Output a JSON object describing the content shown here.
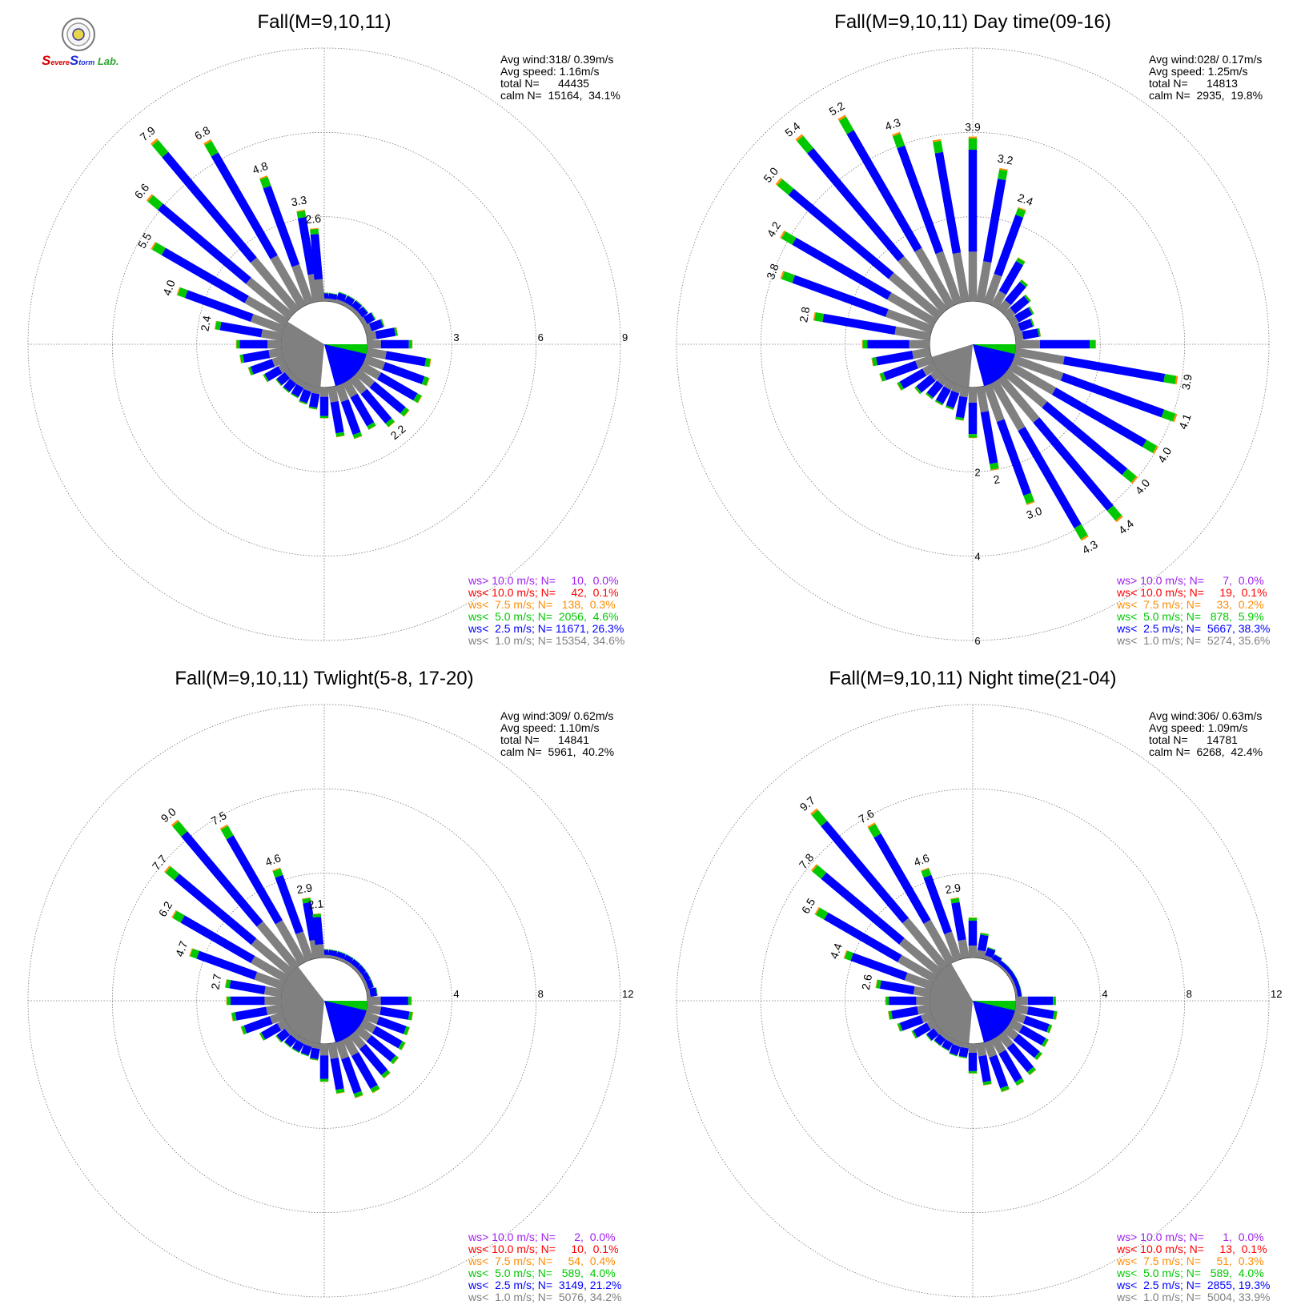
{
  "logo": {
    "text_parts": [
      {
        "text": "S",
        "color": "#d40000"
      },
      {
        "text": "evere",
        "color": "#d40000"
      },
      {
        "text": "S",
        "color": "#1f2fd8"
      },
      {
        "text": "torm",
        "color": "#1f2fd8"
      },
      {
        "text": " Lab.",
        "color": "#2fa52f"
      }
    ]
  },
  "colors": {
    "calm": "#808080",
    "ws_lt_1": "#808080",
    "ws_lt_2_5": "#0000ff",
    "ws_lt_5": "#00c800",
    "ws_lt_7_5": "#ff8c00",
    "ws_lt_10": "#ff0000",
    "ws_gt_10": "#a020f0"
  },
  "chart_data": [
    {
      "type": "wind-rose",
      "title": "Fall(M=9,10,11)",
      "radial_max": 9,
      "ring_labels": [
        "3",
        "6",
        "9"
      ],
      "stats": [
        "Avg wind:318/ 0.39m/s",
        "Avg speed: 1.16m/s",
        "total N=      44435",
        "calm N=  15164,  34.1%"
      ],
      "legend": [
        {
          "text": "ws> 10.0 m/s; N=     10,  0.0%",
          "color": "#a020f0"
        },
        {
          "text": "ws< 10.0 m/s; N=     42,  0.1%",
          "color": "#ff0000"
        },
        {
          "text": "ws<  7.5 m/s; N=   138,  0.3%",
          "color": "#ff8c00"
        },
        {
          "text": "ws<  5.0 m/s; N=  2056,  4.6%",
          "color": "#00c800"
        },
        {
          "text": "ws<  2.5 m/s; N= 11671, 26.3%",
          "color": "#0000ff"
        },
        {
          "text": "ws<  1.0 m/s; N= 15354, 34.6%",
          "color": "#808080"
        }
      ],
      "calm_pct": 34.1,
      "sectors": [
        {
          "dir": 0,
          "total": 0.3,
          "label": ""
        },
        {
          "dir": 10,
          "total": 0.3,
          "label": ""
        },
        {
          "dir": 20,
          "total": 0.4,
          "label": ""
        },
        {
          "dir": 30,
          "total": 0.4,
          "label": ""
        },
        {
          "dir": 40,
          "total": 0.4,
          "label": ""
        },
        {
          "dir": 50,
          "total": 0.4,
          "label": ""
        },
        {
          "dir": 60,
          "total": 0.5,
          "label": ""
        },
        {
          "dir": 70,
          "total": 0.7,
          "label": ""
        },
        {
          "dir": 80,
          "total": 1.1,
          "label": ""
        },
        {
          "dir": 90,
          "total": 1.6,
          "label": ""
        },
        {
          "dir": 100,
          "total": 2.3,
          "label": ""
        },
        {
          "dir": 110,
          "total": 2.4,
          "label": ""
        },
        {
          "dir": 120,
          "total": 2.4,
          "label": ""
        },
        {
          "dir": 130,
          "total": 2.3,
          "label": ""
        },
        {
          "dir": 140,
          "total": 2.2,
          "label": "2.2"
        },
        {
          "dir": 150,
          "total": 1.9,
          "label": ""
        },
        {
          "dir": 160,
          "total": 2.0,
          "label": ""
        },
        {
          "dir": 170,
          "total": 1.8,
          "label": ""
        },
        {
          "dir": 180,
          "total": 1.1,
          "label": ""
        },
        {
          "dir": 190,
          "total": 0.8,
          "label": ""
        },
        {
          "dir": 200,
          "total": 0.7,
          "label": ""
        },
        {
          "dir": 210,
          "total": 0.6,
          "label": ""
        },
        {
          "dir": 220,
          "total": 0.6,
          "label": ""
        },
        {
          "dir": 230,
          "total": 0.6,
          "label": ""
        },
        {
          "dir": 240,
          "total": 0.9,
          "label": ""
        },
        {
          "dir": 250,
          "total": 1.3,
          "label": ""
        },
        {
          "dir": 260,
          "total": 1.5,
          "label": ""
        },
        {
          "dir": 270,
          "total": 1.6,
          "label": ""
        },
        {
          "dir": 280,
          "total": 2.4,
          "label": "2.4"
        },
        {
          "dir": 290,
          "total": 4.0,
          "label": "4.0"
        },
        {
          "dir": 300,
          "total": 5.5,
          "label": "5.5"
        },
        {
          "dir": 310,
          "total": 6.6,
          "label": "6.6"
        },
        {
          "dir": 320,
          "total": 7.9,
          "label": "7.9"
        },
        {
          "dir": 330,
          "total": 6.8,
          "label": "6.8"
        },
        {
          "dir": 340,
          "total": 4.8,
          "label": "4.8"
        },
        {
          "dir": 350,
          "total": 3.3,
          "label": "3.3"
        },
        {
          "dir": 355,
          "total": 2.6,
          "label": "2.6"
        }
      ]
    },
    {
      "type": "wind-rose",
      "title": "Fall(M=9,10,11) Day time(09-16)",
      "radial_max": 6,
      "ring_labels": [
        "2",
        "4",
        "6"
      ],
      "ring_label_axis": "south",
      "stats": [
        "Avg wind:028/ 0.17m/s",
        "Avg speed: 1.25m/s",
        "total N=      14813",
        "calm N=  2935,  19.8%"
      ],
      "legend": [
        {
          "text": "ws> 10.0 m/s; N=      7,  0.0%",
          "color": "#a020f0"
        },
        {
          "text": "ws< 10.0 m/s; N=     19,  0.1%",
          "color": "#ff0000"
        },
        {
          "text": "ws<  7.5 m/s; N=     33,  0.2%",
          "color": "#ff8c00"
        },
        {
          "text": "ws<  5.0 m/s; N=   878,  5.9%",
          "color": "#00c800"
        },
        {
          "text": "ws<  2.5 m/s; N=  5667, 38.3%",
          "color": "#0000ff"
        },
        {
          "text": "ws<  1.0 m/s; N=  5274, 35.6%",
          "color": "#808080"
        }
      ],
      "calm_pct": 19.8,
      "sectors": [
        {
          "dir": 0,
          "total": 3.9,
          "label": "3.9"
        },
        {
          "dir": 10,
          "total": 3.2,
          "label": "3.2"
        },
        {
          "dir": 20,
          "total": 2.4,
          "label": "2.4"
        },
        {
          "dir": 30,
          "total": 1.3,
          "label": ""
        },
        {
          "dir": 40,
          "total": 0.9,
          "label": ""
        },
        {
          "dir": 50,
          "total": 0.7,
          "label": ""
        },
        {
          "dir": 60,
          "total": 0.6,
          "label": ""
        },
        {
          "dir": 70,
          "total": 0.5,
          "label": ""
        },
        {
          "dir": 80,
          "total": 0.6,
          "label": ""
        },
        {
          "dir": 90,
          "total": 1.9,
          "label": ""
        },
        {
          "dir": 100,
          "total": 3.9,
          "label": "3.9"
        },
        {
          "dir": 110,
          "total": 4.1,
          "label": "4.1"
        },
        {
          "dir": 120,
          "total": 4.0,
          "label": "4.0"
        },
        {
          "dir": 130,
          "total": 4.0,
          "label": "4.0"
        },
        {
          "dir": 140,
          "total": 4.4,
          "label": "4.4"
        },
        {
          "dir": 150,
          "total": 4.3,
          "label": "4.3"
        },
        {
          "dir": 160,
          "total": 3.0,
          "label": "3.0"
        },
        {
          "dir": 170,
          "total": 2.0,
          "label": "2"
        },
        {
          "dir": 180,
          "total": 1.2,
          "label": ""
        },
        {
          "dir": 190,
          "total": 0.8,
          "label": ""
        },
        {
          "dir": 200,
          "total": 0.6,
          "label": ""
        },
        {
          "dir": 210,
          "total": 0.6,
          "label": ""
        },
        {
          "dir": 220,
          "total": 0.6,
          "label": ""
        },
        {
          "dir": 230,
          "total": 0.7,
          "label": ""
        },
        {
          "dir": 240,
          "total": 1.0,
          "label": ""
        },
        {
          "dir": 250,
          "total": 1.3,
          "label": ""
        },
        {
          "dir": 260,
          "total": 1.4,
          "label": ""
        },
        {
          "dir": 270,
          "total": 1.6,
          "label": ""
        },
        {
          "dir": 280,
          "total": 2.8,
          "label": "2.8"
        },
        {
          "dir": 290,
          "total": 3.8,
          "label": "3.8"
        },
        {
          "dir": 300,
          "total": 4.2,
          "label": "4.2"
        },
        {
          "dir": 310,
          "total": 5.0,
          "label": "5.0"
        },
        {
          "dir": 320,
          "total": 5.4,
          "label": "5.4"
        },
        {
          "dir": 330,
          "total": 5.2,
          "label": "5.2"
        },
        {
          "dir": 340,
          "total": 4.3,
          "label": "4.3"
        },
        {
          "dir": 350,
          "total": 3.9,
          "label": ""
        }
      ]
    },
    {
      "type": "wind-rose",
      "title": "Fall(M=9,10,11) Twlight(5-8, 17-20)",
      "radial_max": 12,
      "ring_labels": [
        "4",
        "8",
        "12"
      ],
      "stats": [
        "Avg wind:309/ 0.62m/s",
        "Avg speed: 1.10m/s",
        "total N=      14841",
        "calm N=  5961,  40.2%"
      ],
      "legend": [
        {
          "text": "ws> 10.0 m/s; N=      2,  0.0%",
          "color": "#a020f0"
        },
        {
          "text": "ws< 10.0 m/s; N=     10,  0.1%",
          "color": "#ff0000"
        },
        {
          "text": "ws<  7.5 m/s; N=     54,  0.4%",
          "color": "#ff8c00"
        },
        {
          "text": "ws<  5.0 m/s; N=   589,  4.0%",
          "color": "#00c800"
        },
        {
          "text": "ws<  2.5 m/s; N=  3149, 21.2%",
          "color": "#0000ff"
        },
        {
          "text": "ws<  1.0 m/s; N=  5076, 34.2%",
          "color": "#808080"
        }
      ],
      "calm_pct": 40.2,
      "sectors": [
        {
          "dir": 0,
          "total": 0.4,
          "label": ""
        },
        {
          "dir": 10,
          "total": 0.4,
          "label": ""
        },
        {
          "dir": 20,
          "total": 0.4,
          "label": ""
        },
        {
          "dir": 30,
          "total": 0.4,
          "label": ""
        },
        {
          "dir": 40,
          "total": 0.4,
          "label": ""
        },
        {
          "dir": 50,
          "total": 0.4,
          "label": ""
        },
        {
          "dir": 60,
          "total": 0.4,
          "label": ""
        },
        {
          "dir": 70,
          "total": 0.4,
          "label": ""
        },
        {
          "dir": 80,
          "total": 0.5,
          "label": ""
        },
        {
          "dir": 90,
          "total": 2.1,
          "label": ""
        },
        {
          "dir": 100,
          "total": 2.2,
          "label": ""
        },
        {
          "dir": 110,
          "total": 2.2,
          "label": ""
        },
        {
          "dir": 120,
          "total": 2.3,
          "label": ""
        },
        {
          "dir": 130,
          "total": 2.4,
          "label": ""
        },
        {
          "dir": 140,
          "total": 2.6,
          "label": ""
        },
        {
          "dir": 150,
          "total": 2.9,
          "label": ""
        },
        {
          "dir": 160,
          "total": 2.8,
          "label": ""
        },
        {
          "dir": 170,
          "total": 2.4,
          "label": ""
        },
        {
          "dir": 180,
          "total": 1.8,
          "label": ""
        },
        {
          "dir": 190,
          "total": 0.8,
          "label": ""
        },
        {
          "dir": 200,
          "total": 0.7,
          "label": ""
        },
        {
          "dir": 210,
          "total": 0.7,
          "label": ""
        },
        {
          "dir": 220,
          "total": 0.7,
          "label": ""
        },
        {
          "dir": 230,
          "total": 0.8,
          "label": ""
        },
        {
          "dir": 240,
          "total": 1.4,
          "label": ""
        },
        {
          "dir": 250,
          "total": 2.1,
          "label": ""
        },
        {
          "dir": 260,
          "total": 2.4,
          "label": ""
        },
        {
          "dir": 270,
          "total": 2.6,
          "label": ""
        },
        {
          "dir": 280,
          "total": 2.7,
          "label": "2.7"
        },
        {
          "dir": 290,
          "total": 4.7,
          "label": "4.7"
        },
        {
          "dir": 300,
          "total": 6.2,
          "label": "6.2"
        },
        {
          "dir": 310,
          "total": 7.7,
          "label": "7.7"
        },
        {
          "dir": 320,
          "total": 9.0,
          "label": "9.0"
        },
        {
          "dir": 330,
          "total": 7.5,
          "label": "7.5"
        },
        {
          "dir": 340,
          "total": 4.6,
          "label": "4.6"
        },
        {
          "dir": 350,
          "total": 2.9,
          "label": "2.9"
        },
        {
          "dir": 355,
          "total": 2.1,
          "label": "2.1"
        }
      ]
    },
    {
      "type": "wind-rose",
      "title": "Fall(M=9,10,11) Night time(21-04)",
      "radial_max": 12,
      "ring_labels": [
        "4",
        "8",
        "12"
      ],
      "stats": [
        "Avg wind:306/ 0.63m/s",
        "Avg speed: 1.09m/s",
        "total N=      14781",
        "calm N=  6268,  42.4%"
      ],
      "legend": [
        {
          "text": "ws> 10.0 m/s; N=      1,  0.0%",
          "color": "#a020f0"
        },
        {
          "text": "ws< 10.0 m/s; N=     13,  0.1%",
          "color": "#ff0000"
        },
        {
          "text": "ws<  7.5 m/s; N=     51,  0.3%",
          "color": "#ff8c00"
        },
        {
          "text": "ws<  5.0 m/s; N=   589,  4.0%",
          "color": "#00c800"
        },
        {
          "text": "ws<  2.5 m/s; N=  2855, 19.3%",
          "color": "#0000ff"
        },
        {
          "text": "ws<  1.0 m/s; N=  5004, 33.9%",
          "color": "#808080"
        }
      ],
      "calm_pct": 42.4,
      "sectors": [
        {
          "dir": 0,
          "total": 1.9,
          "label": ""
        },
        {
          "dir": 10,
          "total": 1.2,
          "label": ""
        },
        {
          "dir": 20,
          "total": 0.6,
          "label": ""
        },
        {
          "dir": 30,
          "total": 0.4,
          "label": ""
        },
        {
          "dir": 40,
          "total": 0.3,
          "label": ""
        },
        {
          "dir": 50,
          "total": 0.3,
          "label": ""
        },
        {
          "dir": 60,
          "total": 0.3,
          "label": ""
        },
        {
          "dir": 70,
          "total": 0.3,
          "label": ""
        },
        {
          "dir": 80,
          "total": 0.3,
          "label": ""
        },
        {
          "dir": 90,
          "total": 1.9,
          "label": ""
        },
        {
          "dir": 100,
          "total": 2.0,
          "label": ""
        },
        {
          "dir": 110,
          "total": 1.9,
          "label": ""
        },
        {
          "dir": 120,
          "total": 2.0,
          "label": ""
        },
        {
          "dir": 130,
          "total": 2.1,
          "label": ""
        },
        {
          "dir": 140,
          "total": 2.4,
          "label": ""
        },
        {
          "dir": 150,
          "total": 2.5,
          "label": ""
        },
        {
          "dir": 160,
          "total": 2.5,
          "label": ""
        },
        {
          "dir": 170,
          "total": 2.0,
          "label": ""
        },
        {
          "dir": 180,
          "total": 1.4,
          "label": ""
        },
        {
          "dir": 190,
          "total": 0.7,
          "label": ""
        },
        {
          "dir": 200,
          "total": 0.7,
          "label": ""
        },
        {
          "dir": 210,
          "total": 0.6,
          "label": ""
        },
        {
          "dir": 220,
          "total": 0.6,
          "label": ""
        },
        {
          "dir": 230,
          "total": 0.7,
          "label": ""
        },
        {
          "dir": 240,
          "total": 1.2,
          "label": ""
        },
        {
          "dir": 250,
          "total": 1.7,
          "label": ""
        },
        {
          "dir": 260,
          "total": 2.0,
          "label": ""
        },
        {
          "dir": 270,
          "total": 2.1,
          "label": ""
        },
        {
          "dir": 280,
          "total": 2.6,
          "label": "2.6"
        },
        {
          "dir": 290,
          "total": 4.4,
          "label": "4.4"
        },
        {
          "dir": 300,
          "total": 6.5,
          "label": "6.5"
        },
        {
          "dir": 310,
          "total": 7.8,
          "label": "7.8"
        },
        {
          "dir": 320,
          "total": 9.7,
          "label": "9.7"
        },
        {
          "dir": 330,
          "total": 7.6,
          "label": "7.6"
        },
        {
          "dir": 340,
          "total": 4.6,
          "label": "4.6"
        },
        {
          "dir": 350,
          "total": 2.9,
          "label": "2.9"
        }
      ]
    }
  ]
}
